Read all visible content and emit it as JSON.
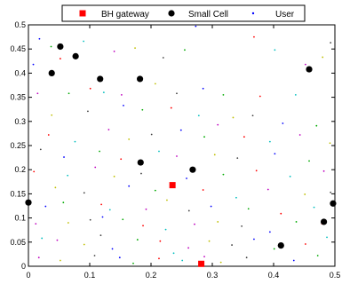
{
  "chart_data": {
    "type": "scatter",
    "title": "",
    "xlabel": "",
    "ylabel": "",
    "xlim": [
      0,
      0.5
    ],
    "ylim": [
      0,
      0.5
    ],
    "grid": false,
    "legend_position": "top",
    "x_ticks": [
      "0",
      "0.1",
      "0.2",
      "0.3",
      "0.4",
      "0.5"
    ],
    "y_ticks": [
      "0",
      "0.05",
      "0.1",
      "0.15",
      "0.2",
      "0.25",
      "0.3",
      "0.35",
      "0.4",
      "0.45",
      "0.5"
    ],
    "series": [
      {
        "name": "BH gateway",
        "marker": "square",
        "color": "#ff0000",
        "points": [
          [
            0.235,
            0.168
          ],
          [
            0.282,
            0.005
          ]
        ]
      },
      {
        "name": "Small Cell",
        "marker": "circle",
        "color": "#000000",
        "points": [
          [
            0.052,
            0.455
          ],
          [
            0.077,
            0.435
          ],
          [
            0.038,
            0.4
          ],
          [
            0.117,
            0.388
          ],
          [
            0.182,
            0.388
          ],
          [
            0.458,
            0.408
          ],
          [
            0.183,
            0.215
          ],
          [
            0.268,
            0.2
          ],
          [
            0.0,
            0.132
          ],
          [
            0.497,
            0.13
          ],
          [
            0.482,
            0.092
          ],
          [
            0.412,
            0.043
          ]
        ]
      },
      {
        "name": "User",
        "marker": "dot",
        "colors": [
          "#0000ff",
          "#00aa00",
          "#ff0000",
          "#00bfbf",
          "#bf00bf",
          "#bfbf00",
          "#404040"
        ],
        "points": [
          [
            0.018,
            0.471
          ],
          [
            0.037,
            0.455
          ],
          [
            0.052,
            0.43
          ],
          [
            0.09,
            0.466
          ],
          [
            0.14,
            0.445
          ],
          [
            0.174,
            0.452
          ],
          [
            0.22,
            0.432
          ],
          [
            0.273,
            0.497
          ],
          [
            0.255,
            0.448
          ],
          [
            0.368,
            0.475
          ],
          [
            0.402,
            0.448
          ],
          [
            0.452,
            0.418
          ],
          [
            0.48,
            0.433
          ],
          [
            0.493,
            0.463
          ],
          [
            0.008,
            0.418
          ],
          [
            0.066,
            0.358
          ],
          [
            0.101,
            0.368
          ],
          [
            0.123,
            0.36
          ],
          [
            0.152,
            0.355
          ],
          [
            0.207,
            0.378
          ],
          [
            0.242,
            0.358
          ],
          [
            0.285,
            0.368
          ],
          [
            0.318,
            0.355
          ],
          [
            0.378,
            0.352
          ],
          [
            0.436,
            0.355
          ],
          [
            0.015,
            0.358
          ],
          [
            0.038,
            0.313
          ],
          [
            0.097,
            0.321
          ],
          [
            0.155,
            0.333
          ],
          [
            0.186,
            0.324
          ],
          [
            0.233,
            0.328
          ],
          [
            0.278,
            0.312
          ],
          [
            0.309,
            0.293
          ],
          [
            0.334,
            0.308
          ],
          [
            0.366,
            0.312
          ],
          [
            0.415,
            0.296
          ],
          [
            0.47,
            0.291
          ],
          [
            0.033,
            0.272
          ],
          [
            0.076,
            0.258
          ],
          [
            0.131,
            0.283
          ],
          [
            0.164,
            0.263
          ],
          [
            0.201,
            0.273
          ],
          [
            0.249,
            0.282
          ],
          [
            0.287,
            0.268
          ],
          [
            0.352,
            0.268
          ],
          [
            0.394,
            0.258
          ],
          [
            0.443,
            0.272
          ],
          [
            0.492,
            0.255
          ],
          [
            0.02,
            0.242
          ],
          [
            0.058,
            0.226
          ],
          [
            0.116,
            0.238
          ],
          [
            0.151,
            0.222
          ],
          [
            0.213,
            0.238
          ],
          [
            0.242,
            0.228
          ],
          [
            0.304,
            0.231
          ],
          [
            0.341,
            0.224
          ],
          [
            0.402,
            0.233
          ],
          [
            0.458,
            0.218
          ],
          [
            0.009,
            0.196
          ],
          [
            0.064,
            0.188
          ],
          [
            0.109,
            0.205
          ],
          [
            0.14,
            0.186
          ],
          [
            0.184,
            0.192
          ],
          [
            0.258,
            0.182
          ],
          [
            0.318,
            0.19
          ],
          [
            0.372,
            0.198
          ],
          [
            0.427,
            0.186
          ],
          [
            0.482,
            0.197
          ],
          [
            0.044,
            0.163
          ],
          [
            0.091,
            0.152
          ],
          [
            0.164,
            0.166
          ],
          [
            0.207,
            0.157
          ],
          [
            0.285,
            0.158
          ],
          [
            0.339,
            0.142
          ],
          [
            0.391,
            0.159
          ],
          [
            0.451,
            0.149
          ],
          [
            0.493,
            0.153
          ],
          [
            0.028,
            0.124
          ],
          [
            0.057,
            0.132
          ],
          [
            0.119,
            0.128
          ],
          [
            0.133,
            0.117
          ],
          [
            0.192,
            0.118
          ],
          [
            0.226,
            0.137
          ],
          [
            0.262,
            0.115
          ],
          [
            0.298,
            0.124
          ],
          [
            0.359,
            0.119
          ],
          [
            0.412,
            0.109
          ],
          [
            0.466,
            0.122
          ],
          [
            0.012,
            0.088
          ],
          [
            0.065,
            0.09
          ],
          [
            0.101,
            0.096
          ],
          [
            0.121,
            0.102
          ],
          [
            0.154,
            0.097
          ],
          [
            0.187,
            0.084
          ],
          [
            0.224,
            0.076
          ],
          [
            0.271,
            0.087
          ],
          [
            0.309,
            0.092
          ],
          [
            0.348,
            0.083
          ],
          [
            0.394,
            0.071
          ],
          [
            0.437,
            0.092
          ],
          [
            0.479,
            0.088
          ],
          [
            0.022,
            0.058
          ],
          [
            0.047,
            0.054
          ],
          [
            0.091,
            0.045
          ],
          [
            0.118,
            0.064
          ],
          [
            0.137,
            0.036
          ],
          [
            0.178,
            0.055
          ],
          [
            0.215,
            0.052
          ],
          [
            0.237,
            0.027
          ],
          [
            0.261,
            0.038
          ],
          [
            0.295,
            0.052
          ],
          [
            0.332,
            0.044
          ],
          [
            0.368,
            0.056
          ],
          [
            0.401,
            0.036
          ],
          [
            0.452,
            0.046
          ],
          [
            0.487,
            0.06
          ],
          [
            0.017,
            0.018
          ],
          [
            0.052,
            0.012
          ],
          [
            0.108,
            0.022
          ],
          [
            0.149,
            0.018
          ],
          [
            0.171,
            0.006
          ],
          [
            0.213,
            0.016
          ],
          [
            0.251,
            0.012
          ],
          [
            0.287,
            0.02
          ],
          [
            0.314,
            0.008
          ],
          [
            0.356,
            0.018
          ],
          [
            0.433,
            0.012
          ],
          [
            0.472,
            0.022
          ]
        ]
      }
    ]
  }
}
